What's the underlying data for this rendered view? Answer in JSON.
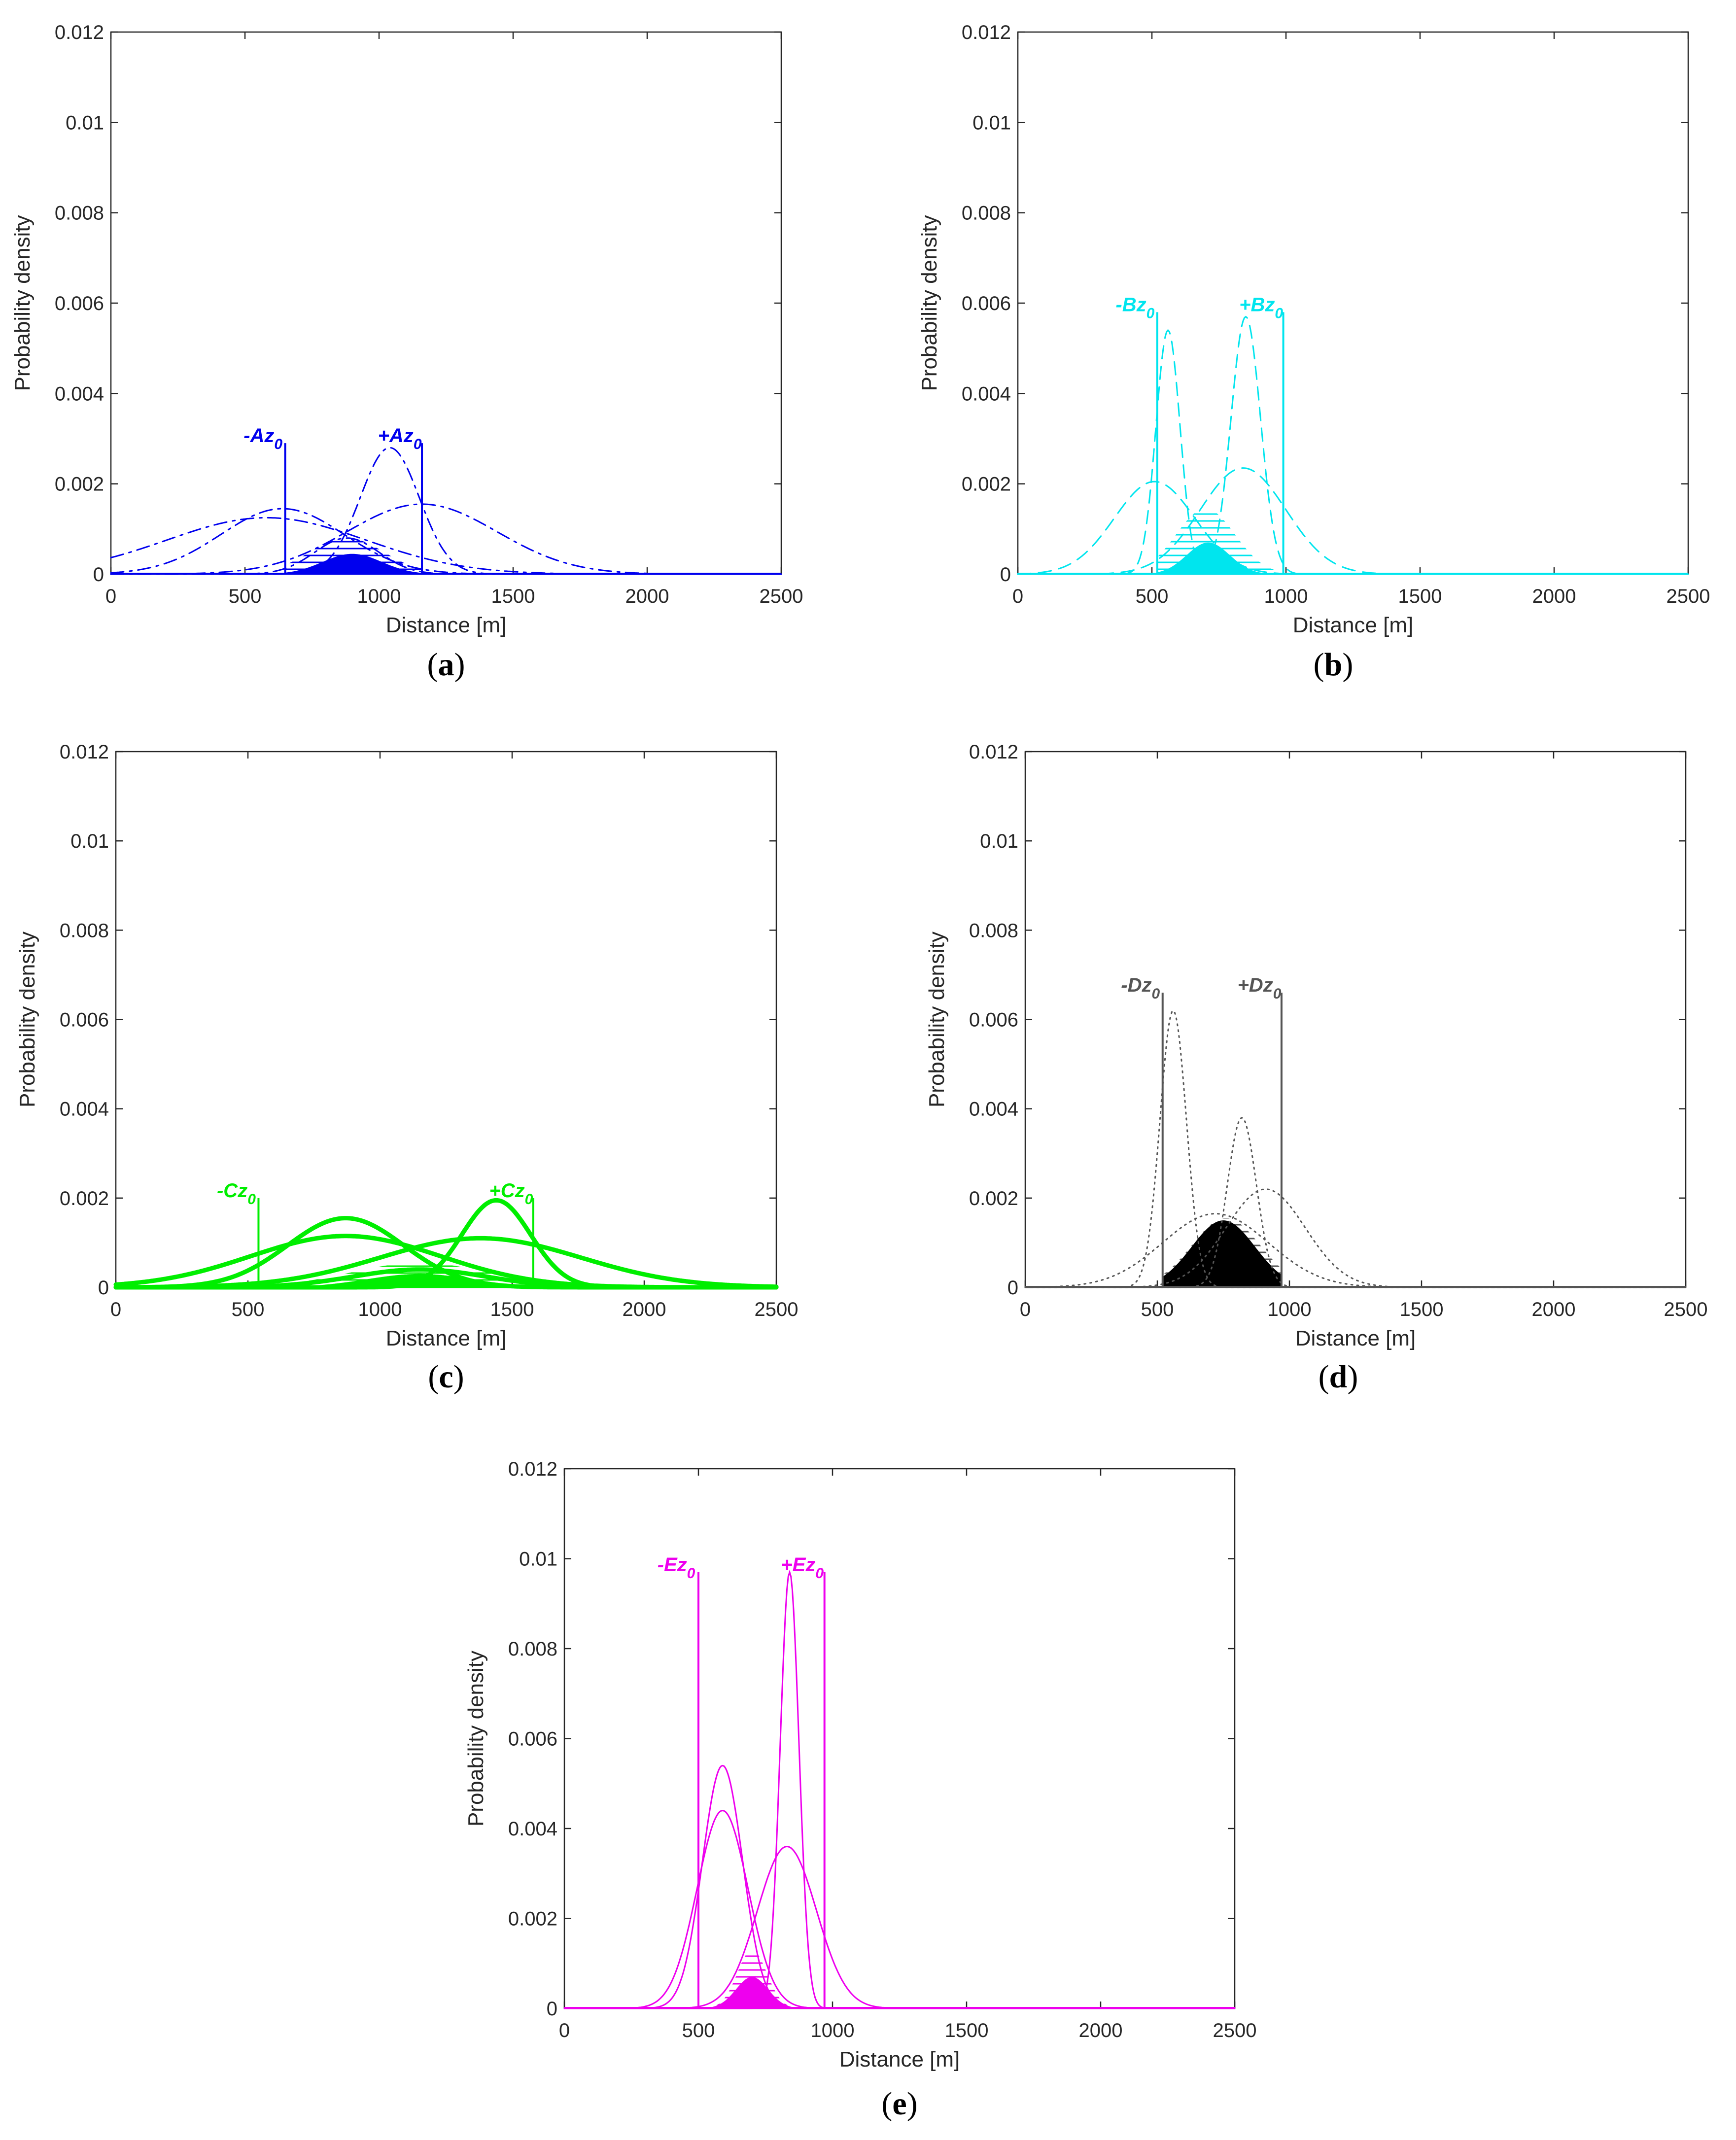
{
  "chart_data": [
    {
      "id": "a",
      "type": "line",
      "caption": "(a)",
      "caption_letter": "a",
      "color": "#0000ee",
      "line_style": "dashdot",
      "xlabel": "Distance [m]",
      "ylabel": "Probability density",
      "xlim": [
        0,
        2500
      ],
      "ylim": [
        0,
        0.012
      ],
      "xticks": [
        0,
        500,
        1000,
        1500,
        2000,
        2500
      ],
      "xtick_labels": [
        "0",
        "500",
        "1000",
        "1500",
        "2000",
        "2500"
      ],
      "yticks": [
        0,
        0.002,
        0.004,
        0.006,
        0.008,
        0.01,
        0.012
      ],
      "ytick_labels": [
        "0",
        "0.002",
        "0.004",
        "0.006",
        "0.008",
        "0.01",
        "0.012"
      ],
      "grid": false,
      "limits": [
        {
          "label_sign": "-",
          "label_letter": "Az",
          "label_sub": "0",
          "x": 650,
          "y_top": 0.0029
        },
        {
          "label_sign": "+",
          "label_letter": "Az",
          "label_sub": "0",
          "x": 1160,
          "y_top": 0.0029
        }
      ],
      "series": [
        {
          "mu": 580,
          "sigma": 370,
          "peak": 0.00125
        },
        {
          "mu": 640,
          "sigma": 230,
          "peak": 0.00145
        },
        {
          "mu": 1160,
          "sigma": 280,
          "peak": 0.00155
        },
        {
          "mu": 1040,
          "sigma": 110,
          "peak": 0.0028
        },
        {
          "mu": 880,
          "sigma": 120,
          "peak": 0.0008
        }
      ],
      "hatched_area": {
        "x": [
          650,
          1160
        ],
        "mu": 880,
        "sigma": 140,
        "peak": 0.0008
      },
      "filled_area": {
        "x": [
          650,
          1160
        ],
        "mu": 900,
        "sigma": 110,
        "peak": 0.00045
      }
    },
    {
      "id": "b",
      "type": "line",
      "caption": "(b)",
      "caption_letter": "b",
      "color": "#00e5ee",
      "line_style": "dashed",
      "xlabel": "Distance [m]",
      "ylabel": "Probability density",
      "xlim": [
        0,
        2500
      ],
      "ylim": [
        0,
        0.012
      ],
      "xticks": [
        0,
        500,
        1000,
        1500,
        2000,
        2500
      ],
      "xtick_labels": [
        "0",
        "500",
        "1000",
        "1500",
        "2000",
        "2500"
      ],
      "yticks": [
        0,
        0.002,
        0.004,
        0.006,
        0.008,
        0.01,
        0.012
      ],
      "ytick_labels": [
        "0",
        "0.002",
        "0.004",
        "0.006",
        "0.008",
        "0.01",
        "0.012"
      ],
      "grid": false,
      "limits": [
        {
          "label_sign": "-",
          "label_letter": "Bz",
          "label_sub": "0",
          "x": 520,
          "y_top": 0.0058
        },
        {
          "label_sign": "+",
          "label_letter": "Bz",
          "label_sub": "0",
          "x": 990,
          "y_top": 0.0058
        }
      ],
      "series": [
        {
          "mu": 510,
          "sigma": 150,
          "peak": 0.00205
        },
        {
          "mu": 560,
          "sigma": 45,
          "peak": 0.0054
        },
        {
          "mu": 840,
          "sigma": 160,
          "peak": 0.00235
        },
        {
          "mu": 850,
          "sigma": 55,
          "peak": 0.0057
        }
      ],
      "hatched_area": {
        "x": [
          520,
          990
        ],
        "mu": 700,
        "sigma": 110,
        "peak": 0.00145
      },
      "filled_area": {
        "x": [
          520,
          990
        ],
        "mu": 710,
        "sigma": 80,
        "peak": 0.0007
      }
    },
    {
      "id": "c",
      "type": "line",
      "caption": "(c)",
      "caption_letter": "c",
      "color": "#00ee00",
      "line_style": "thick",
      "xlabel": "Distance [m]",
      "ylabel": "Probability density",
      "xlim": [
        0,
        2500
      ],
      "ylim": [
        0,
        0.012
      ],
      "xticks": [
        0,
        500,
        1000,
        1500,
        2000,
        2500
      ],
      "xtick_labels": [
        "0",
        "500",
        "1000",
        "1500",
        "2000",
        "2500"
      ],
      "yticks": [
        0,
        0.002,
        0.004,
        0.006,
        0.008,
        0.01,
        0.012
      ],
      "ytick_labels": [
        "0",
        "0.002",
        "0.004",
        "0.006",
        "0.008",
        "0.01",
        "0.012"
      ],
      "grid": false,
      "limits": [
        {
          "label_sign": "-",
          "label_letter": "Cz",
          "label_sub": "0",
          "x": 540,
          "y_top": 0.002
        },
        {
          "label_sign": "+",
          "label_letter": "Cz",
          "label_sub": "0",
          "x": 1580,
          "y_top": 0.002
        }
      ],
      "series": [
        {
          "mu": 870,
          "sigma": 220,
          "peak": 0.00155
        },
        {
          "mu": 870,
          "sigma": 360,
          "peak": 0.00115
        },
        {
          "mu": 1440,
          "sigma": 130,
          "peak": 0.00195
        },
        {
          "mu": 1380,
          "sigma": 380,
          "peak": 0.0011
        },
        {
          "mu": 1150,
          "sigma": 250,
          "peak": 0.0004
        }
      ],
      "hatched_area": {
        "x": [
          540,
          1580
        ],
        "mu": 1150,
        "sigma": 260,
        "peak": 0.00055
      },
      "filled_area": {
        "x": [
          540,
          1580
        ],
        "mu": 1150,
        "sigma": 200,
        "peak": 0.0003
      }
    },
    {
      "id": "d",
      "type": "line",
      "caption": "(d)",
      "caption_letter": "d",
      "color": "#555555",
      "line_style": "dotted",
      "xlabel": "Distance [m]",
      "ylabel": "Probability density",
      "xlim": [
        0,
        2500
      ],
      "ylim": [
        0,
        0.012
      ],
      "xticks": [
        0,
        500,
        1000,
        1500,
        2000,
        2500
      ],
      "xtick_labels": [
        "0",
        "500",
        "1000",
        "1500",
        "2000",
        "2500"
      ],
      "yticks": [
        0,
        0.002,
        0.004,
        0.006,
        0.008,
        0.01,
        0.012
      ],
      "ytick_labels": [
        "0",
        "0.002",
        "0.004",
        "0.006",
        "0.008",
        "0.01",
        "0.012"
      ],
      "grid": false,
      "limits": [
        {
          "label_sign": "-",
          "label_letter": "Dz",
          "label_sub": "0",
          "x": 520,
          "y_top": 0.0066
        },
        {
          "label_sign": "+",
          "label_letter": "Dz",
          "label_sub": "0",
          "x": 970,
          "y_top": 0.0066
        }
      ],
      "series": [
        {
          "mu": 560,
          "sigma": 50,
          "peak": 0.0062
        },
        {
          "mu": 720,
          "sigma": 200,
          "peak": 0.00165
        },
        {
          "mu": 820,
          "sigma": 55,
          "peak": 0.0038
        },
        {
          "mu": 910,
          "sigma": 150,
          "peak": 0.0022
        }
      ],
      "hatched_area": {
        "x": [
          520,
          970
        ],
        "mu": 760,
        "sigma": 130,
        "peak": 0.00155
      },
      "filled_area": {
        "x": [
          520,
          970
        ],
        "mu": 750,
        "sigma": 120,
        "peak": 0.0015
      }
    },
    {
      "id": "e",
      "type": "line",
      "caption": "(e)",
      "caption_letter": "e",
      "color": "#ee00ee",
      "line_style": "solid",
      "xlabel": "Distance [m]",
      "ylabel": "Probability density",
      "xlim": [
        0,
        2500
      ],
      "ylim": [
        0,
        0.012
      ],
      "xticks": [
        0,
        500,
        1000,
        1500,
        2000,
        2500
      ],
      "xtick_labels": [
        "0",
        "500",
        "1000",
        "1500",
        "2000",
        "2500"
      ],
      "yticks": [
        0,
        0.002,
        0.004,
        0.006,
        0.008,
        0.01,
        0.012
      ],
      "ytick_labels": [
        "0",
        "0.002",
        "0.004",
        "0.006",
        "0.008",
        "0.01",
        "0.012"
      ],
      "grid": false,
      "limits": [
        {
          "label_sign": "-",
          "label_letter": "Ez",
          "label_sub": "0",
          "x": 500,
          "y_top": 0.0097
        },
        {
          "label_sign": "+",
          "label_letter": "Ez",
          "label_sub": "0",
          "x": 970,
          "y_top": 0.0097
        }
      ],
      "series": [
        {
          "mu": 590,
          "sigma": 75,
          "peak": 0.0054
        },
        {
          "mu": 590,
          "sigma": 95,
          "peak": 0.0044
        },
        {
          "mu": 840,
          "sigma": 35,
          "peak": 0.0097
        },
        {
          "mu": 830,
          "sigma": 110,
          "peak": 0.0036
        }
      ],
      "hatched_area": {
        "x": [
          500,
          970
        ],
        "mu": 700,
        "sigma": 55,
        "peak": 0.0013
      },
      "filled_area": {
        "x": [
          500,
          970
        ],
        "mu": 700,
        "sigma": 60,
        "peak": 0.0007
      }
    }
  ]
}
